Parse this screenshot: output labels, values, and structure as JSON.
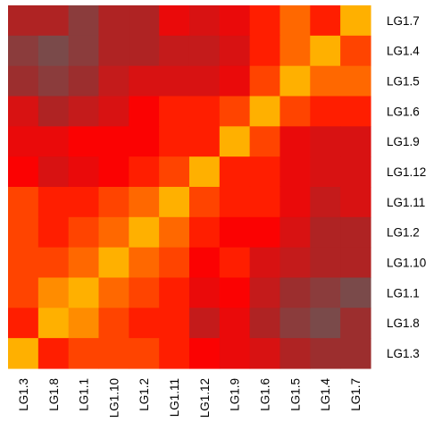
{
  "chart_data": {
    "type": "heatmap",
    "rows": [
      "LG1.7",
      "LG1.4",
      "LG1.5",
      "LG1.6",
      "LG1.9",
      "LG1.12",
      "LG1.11",
      "LG1.2",
      "LG1.10",
      "LG1.1",
      "LG1.8",
      "LG1.3"
    ],
    "columns": [
      "LG1.3",
      "LG1.8",
      "LG1.1",
      "LG1.10",
      "LG1.2",
      "LG1.11",
      "LG1.12",
      "LG1.9",
      "LG1.6",
      "LG1.5",
      "LG1.4",
      "LG1.7"
    ],
    "values": [
      [
        3,
        3,
        1,
        3,
        3,
        6,
        5,
        6,
        8,
        10,
        8,
        12
      ],
      [
        1,
        0,
        1,
        3,
        3,
        4,
        4,
        5,
        8,
        10,
        12,
        9
      ],
      [
        2,
        1,
        2,
        4,
        5,
        5,
        5,
        6,
        9,
        12,
        10,
        10
      ],
      [
        5,
        3,
        4,
        5,
        7,
        8,
        8,
        9,
        12,
        9,
        8,
        8
      ],
      [
        6,
        6,
        7,
        7,
        7,
        8,
        8,
        12,
        9,
        6,
        5,
        5
      ],
      [
        7,
        5,
        6,
        7,
        8,
        9,
        12,
        8,
        8,
        6,
        5,
        5
      ],
      [
        9,
        8,
        8,
        9,
        10,
        12,
        9,
        8,
        8,
        6,
        4,
        5
      ],
      [
        9,
        8,
        9,
        10,
        12,
        10,
        8,
        7,
        7,
        5,
        3,
        3
      ],
      [
        9,
        9,
        10,
        12,
        10,
        9,
        7,
        8,
        5,
        4,
        3,
        3
      ],
      [
        9,
        11,
        12,
        10,
        9,
        8,
        6,
        7,
        4,
        2,
        1,
        0
      ],
      [
        8,
        12,
        11,
        9,
        8,
        8,
        4,
        6,
        3,
        1,
        0,
        2
      ],
      [
        12,
        8,
        9,
        9,
        9,
        8,
        7,
        6,
        5,
        3,
        2,
        2
      ]
    ],
    "value_range": [
      0,
      12
    ],
    "colorscale": [
      "#7a4a4a",
      "#a32828",
      "#d41414",
      "#ff0000",
      "#ff5a00",
      "#ffb000"
    ],
    "legend": "none",
    "grid": false
  }
}
